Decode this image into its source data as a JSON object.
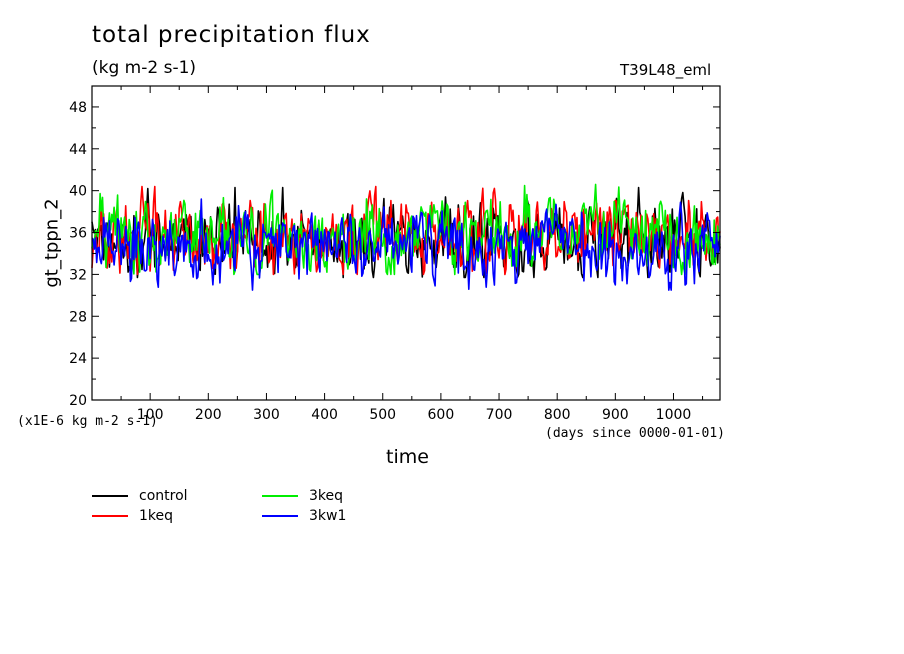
{
  "chart_data": {
    "type": "line",
    "title": "total precipitation flux",
    "units": "(kg m-2 s-1)",
    "experiment": "T39L48_eml",
    "ylabel": "gt_tppn_2",
    "xlabel": "time",
    "x_units": "(days since 0000-01-01)",
    "y_units": "(x1E-6 kg m-2 s-1)",
    "xlim": [
      0,
      1080
    ],
    "ylim": [
      20,
      50
    ],
    "x_ticks": [
      100,
      200,
      300,
      400,
      500,
      600,
      700,
      800,
      900,
      1000
    ],
    "y_ticks": [
      20,
      24,
      28,
      32,
      36,
      40,
      44,
      48
    ],
    "legend_position": "bottom-left",
    "series": [
      {
        "name": "control",
        "color": "#000000",
        "mean": 35.5,
        "min": 31.7,
        "max": 40.3
      },
      {
        "name": "1keq",
        "color": "#ff0000",
        "mean": 35.7,
        "min": 32.0,
        "max": 40.4
      },
      {
        "name": "3keq",
        "color": "#00ee00",
        "mean": 35.8,
        "min": 32.0,
        "max": 40.7
      },
      {
        "name": "3kw1",
        "color": "#0000ff",
        "mean": 35.0,
        "min": 30.5,
        "max": 41.0
      }
    ]
  }
}
